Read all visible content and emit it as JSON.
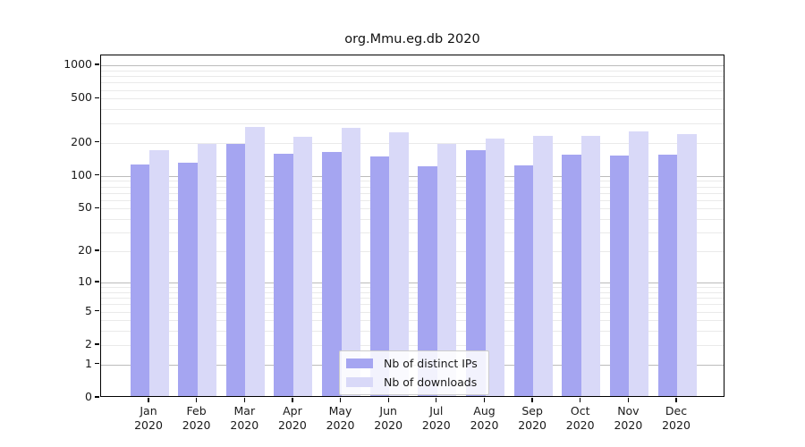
{
  "chart_data": {
    "type": "bar",
    "title": "org.Mmu.eg.db 2020",
    "categories": [
      "Jan",
      "Feb",
      "Mar",
      "Apr",
      "May",
      "Jun",
      "Jul",
      "Aug",
      "Sep",
      "Oct",
      "Nov",
      "Dec"
    ],
    "x_tick_second_line": "2020",
    "series": [
      {
        "name": "Nb of distinct IPs",
        "color": "#a5a5f1",
        "values": [
          122,
          127,
          186,
          154,
          160,
          145,
          117,
          164,
          119,
          151,
          147,
          151
        ]
      },
      {
        "name": "Nb of downloads",
        "color": "#d9d9f8",
        "values": [
          165,
          186,
          270,
          218,
          265,
          240,
          187,
          210,
          224,
          221,
          243,
          231
        ]
      }
    ],
    "xlabel": "",
    "ylabel": "",
    "yscale": "log1p",
    "y_ticks": [
      0,
      1,
      2,
      5,
      10,
      20,
      50,
      100,
      200,
      500,
      1000
    ],
    "y_minor_gridlines": [
      2,
      3,
      4,
      5,
      6,
      7,
      8,
      9,
      20,
      30,
      40,
      50,
      60,
      70,
      80,
      90,
      200,
      300,
      400,
      500,
      600,
      700,
      800,
      900
    ],
    "y_major_gridlines": [
      1,
      10,
      100,
      1000
    ],
    "ylim": [
      0,
      1230
    ],
    "grid": true,
    "legend_position": "lower center"
  },
  "colors": {
    "background": "#ffffff",
    "spine": "#000000",
    "grid_major": "#bcbcbc",
    "grid_minor": "#eaeaea",
    "text": "#1a1a1a",
    "legend_border": "#cccccc"
  }
}
